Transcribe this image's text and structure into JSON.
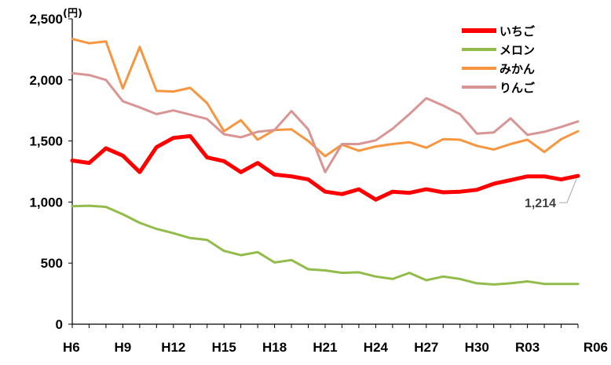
{
  "chart_data": {
    "type": "line",
    "unit_label": "(円)",
    "y_tick_labels": [
      "0",
      "500",
      "1,000",
      "1,500",
      "2,000",
      "2,500"
    ],
    "y_tick_values": [
      0,
      500,
      1000,
      1500,
      2000,
      2500
    ],
    "ylim": [
      0,
      2500
    ],
    "x": [
      "H6",
      "H7",
      "H8",
      "H9",
      "H10",
      "H11",
      "H12",
      "H13",
      "H14",
      "H15",
      "H16",
      "H17",
      "H18",
      "H19",
      "H20",
      "H21",
      "H22",
      "H23",
      "H24",
      "H25",
      "H26",
      "H27",
      "H28",
      "H29",
      "H30",
      "R01",
      "R02",
      "R03",
      "R04",
      "R05",
      "R06"
    ],
    "x_tick_labels": [
      "H6",
      "H9",
      "H12",
      "H15",
      "H18",
      "H21",
      "H24",
      "H27",
      "H30",
      "R03",
      "R06"
    ],
    "grid": false,
    "legend_position": "top-right",
    "series": [
      {
        "name": "いちご",
        "color": "#ff0000",
        "width": 5,
        "values": [
          1340,
          1320,
          1440,
          1380,
          1245,
          1450,
          1525,
          1540,
          1365,
          1335,
          1245,
          1320,
          1225,
          1210,
          1185,
          1085,
          1065,
          1105,
          1020,
          1085,
          1075,
          1105,
          1080,
          1085,
          1100,
          1150,
          1180,
          1210,
          1210,
          1185,
          1214
        ]
      },
      {
        "name": "メロン",
        "color": "#92bc4a",
        "width": 3,
        "values": [
          965,
          970,
          960,
          900,
          830,
          780,
          745,
          705,
          690,
          600,
          565,
          590,
          505,
          525,
          450,
          440,
          420,
          425,
          390,
          370,
          420,
          360,
          390,
          370,
          335,
          325,
          335,
          350,
          330,
          330,
          330
        ]
      },
      {
        "name": "みかん",
        "color": "#f7963f",
        "width": 3,
        "values": [
          2335,
          2300,
          2315,
          1930,
          2270,
          1910,
          1905,
          1935,
          1810,
          1580,
          1670,
          1510,
          1590,
          1595,
          1500,
          1375,
          1470,
          1420,
          1455,
          1475,
          1490,
          1445,
          1515,
          1510,
          1460,
          1430,
          1475,
          1510,
          1410,
          1515,
          1580
        ]
      },
      {
        "name": "りんご",
        "color": "#d99594",
        "width": 3,
        "values": [
          2055,
          2040,
          2000,
          1825,
          1775,
          1720,
          1750,
          1715,
          1680,
          1555,
          1530,
          1575,
          1590,
          1745,
          1595,
          1245,
          1475,
          1475,
          1505,
          1600,
          1720,
          1850,
          1790,
          1720,
          1560,
          1570,
          1685,
          1550,
          1575,
          1615,
          1660
        ]
      }
    ],
    "annotations": [
      {
        "text": "1,214",
        "series": "いちご",
        "x": "R06"
      }
    ]
  }
}
